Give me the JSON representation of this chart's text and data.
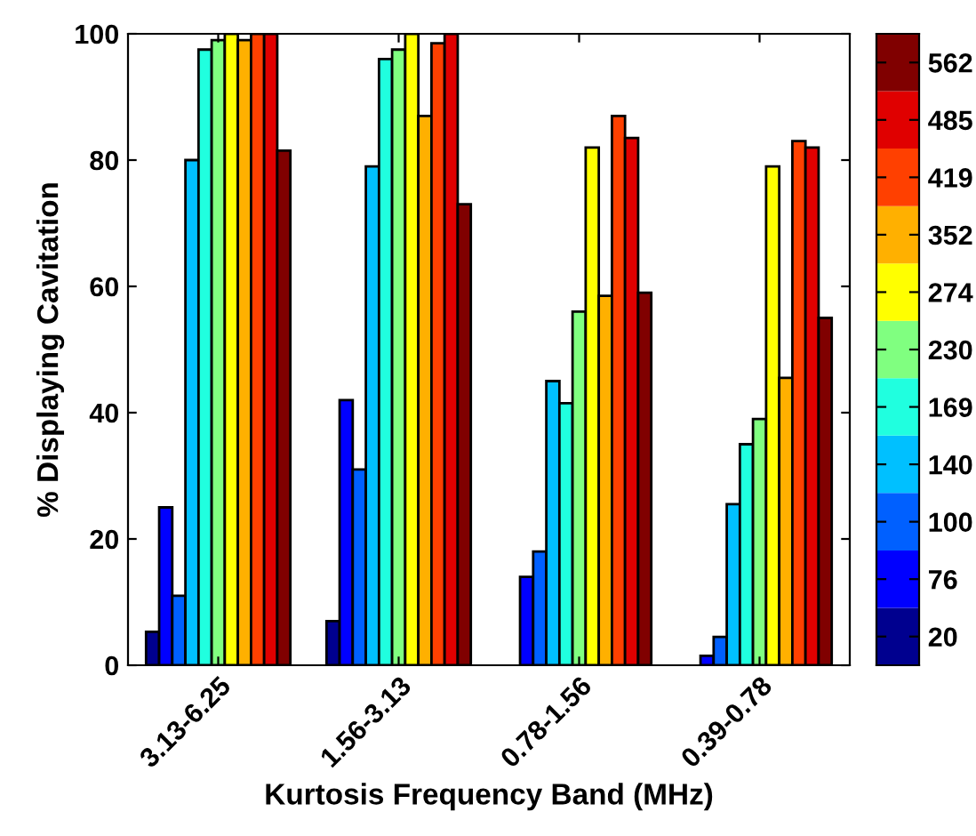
{
  "chart_data": {
    "type": "bar",
    "xlabel": "Kurtosis Frequency Band (MHz)",
    "ylabel": "% Displaying Cavitation",
    "categories": [
      "3.13-6.25",
      "1.56-3.13",
      "0.78-1.56",
      "0.39-0.78"
    ],
    "ylim": [
      0,
      100
    ],
    "yticks": [
      0,
      20,
      40,
      60,
      80,
      100
    ],
    "grid": false,
    "legend": "right",
    "series": [
      {
        "name": "20",
        "color": "#00008f",
        "values": [
          5.3,
          7,
          null,
          null
        ]
      },
      {
        "name": "76",
        "color": "#0000ff",
        "values": [
          25,
          42,
          14,
          1.5
        ]
      },
      {
        "name": "100",
        "color": "#0060ff",
        "values": [
          11,
          31,
          18,
          4.5
        ]
      },
      {
        "name": "140",
        "color": "#00c0ff",
        "values": [
          80,
          79,
          45,
          25.5
        ]
      },
      {
        "name": "169",
        "color": "#20ffdf",
        "values": [
          97.5,
          96,
          41.5,
          35
        ]
      },
      {
        "name": "230",
        "color": "#80ff80",
        "values": [
          99,
          97.5,
          56,
          39
        ]
      },
      {
        "name": "274",
        "color": "#ffff00",
        "values": [
          100,
          100,
          82,
          79
        ]
      },
      {
        "name": "352",
        "color": "#ffb000",
        "values": [
          99,
          87,
          58.5,
          45.5
        ]
      },
      {
        "name": "419",
        "color": "#ff4000",
        "values": [
          100,
          98.5,
          87,
          83
        ]
      },
      {
        "name": "485",
        "color": "#e00000",
        "values": [
          100,
          100,
          83.5,
          82
        ]
      },
      {
        "name": "562",
        "color": "#800000",
        "values": [
          81.5,
          73,
          59,
          55
        ]
      }
    ]
  }
}
